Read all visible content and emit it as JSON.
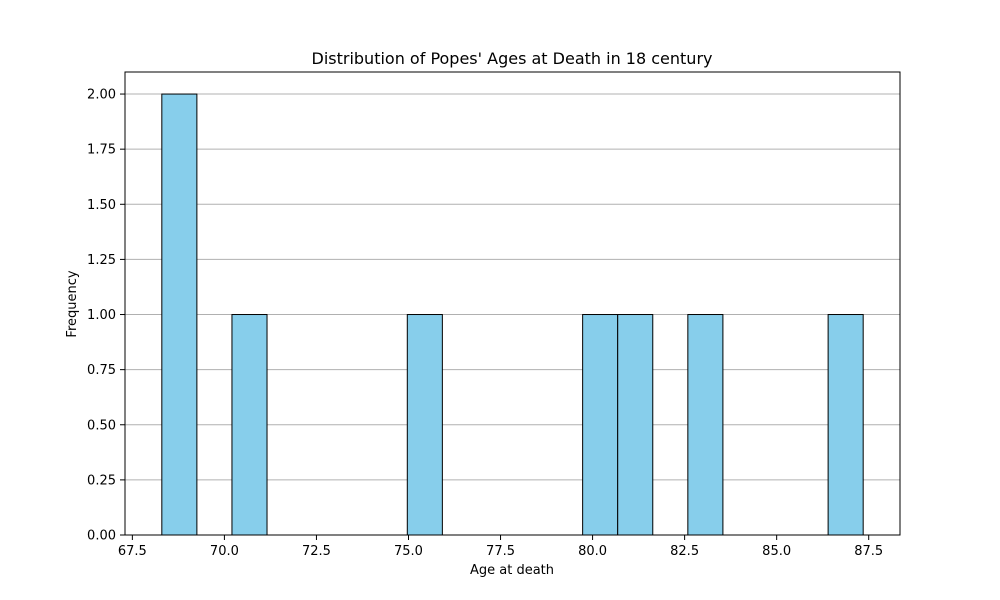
{
  "chart_data": {
    "type": "bar",
    "title": "Distribution of Popes' Ages at Death in 18 century",
    "xlabel": "Age at death",
    "ylabel": "Frequency",
    "xlim": [
      67.3,
      88.35
    ],
    "ylim": [
      0,
      2.1
    ],
    "bins": {
      "start": 68.3,
      "end": 87.35,
      "count": 20,
      "counts": [
        2,
        0,
        1,
        0,
        0,
        0,
        0,
        1,
        0,
        0,
        0,
        0,
        1,
        1,
        0,
        1,
        0,
        0,
        0,
        1
      ]
    },
    "x_ticks": [
      "67.5",
      "70.0",
      "72.5",
      "75.0",
      "77.5",
      "80.0",
      "82.5",
      "85.0",
      "87.5"
    ],
    "x_tick_values": [
      67.5,
      70.0,
      72.5,
      75.0,
      77.5,
      80.0,
      82.5,
      85.0,
      87.5
    ],
    "y_ticks": [
      "0.00",
      "0.25",
      "0.50",
      "0.75",
      "1.00",
      "1.25",
      "1.50",
      "1.75",
      "2.00"
    ],
    "y_tick_values": [
      0,
      0.25,
      0.5,
      0.75,
      1.0,
      1.25,
      1.5,
      1.75,
      2.0
    ],
    "grid": "y",
    "colors": {
      "bar_fill": "#87ceeb",
      "bar_edge": "#000000",
      "grid": "#b0b0b0"
    }
  }
}
